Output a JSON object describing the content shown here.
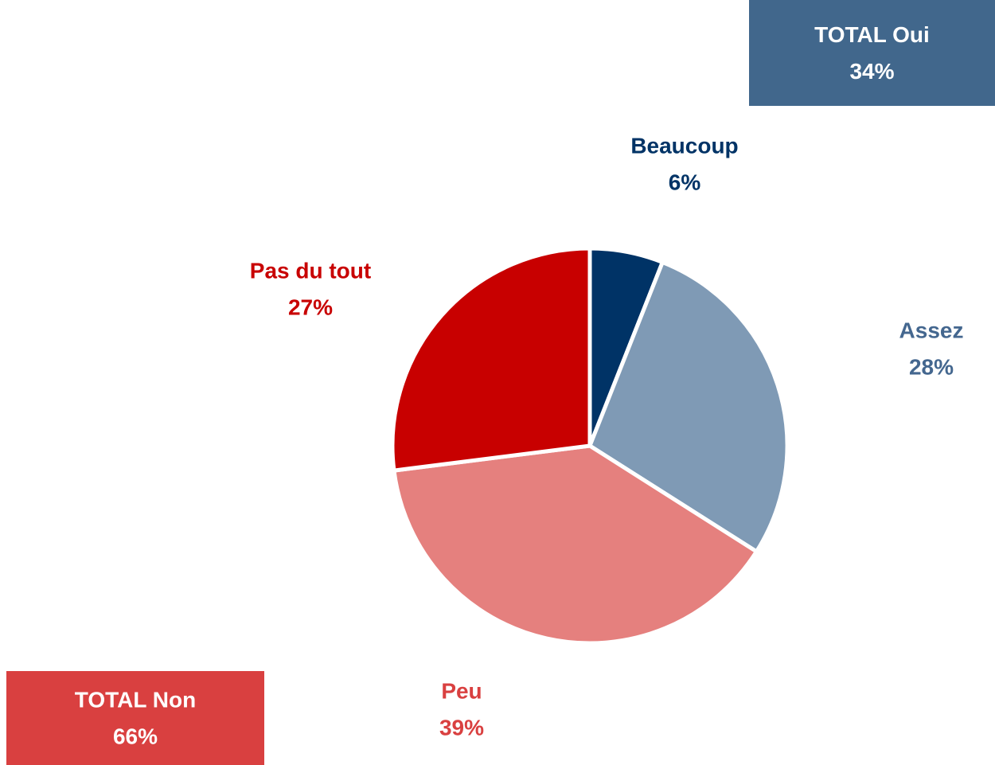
{
  "chart_data": {
    "type": "pie",
    "categories": [
      "Beaucoup",
      "Assez",
      "Peu",
      "Pas du tout"
    ],
    "values": [
      6,
      28,
      39,
      27
    ],
    "value_labels": [
      "6%",
      "28%",
      "39%",
      "27%"
    ],
    "colors": [
      "#003366",
      "#7f9ab5",
      "#e5807e",
      "#c80000"
    ],
    "label_colors": [
      "#003366",
      "#44678f",
      "#d94040",
      "#c80000"
    ],
    "annotations": [
      {
        "text": "TOTAL Oui",
        "value_label": "34%",
        "color": "#41678c"
      },
      {
        "text": "TOTAL Non",
        "value_label": "66%",
        "color": "#d94040"
      }
    ]
  }
}
